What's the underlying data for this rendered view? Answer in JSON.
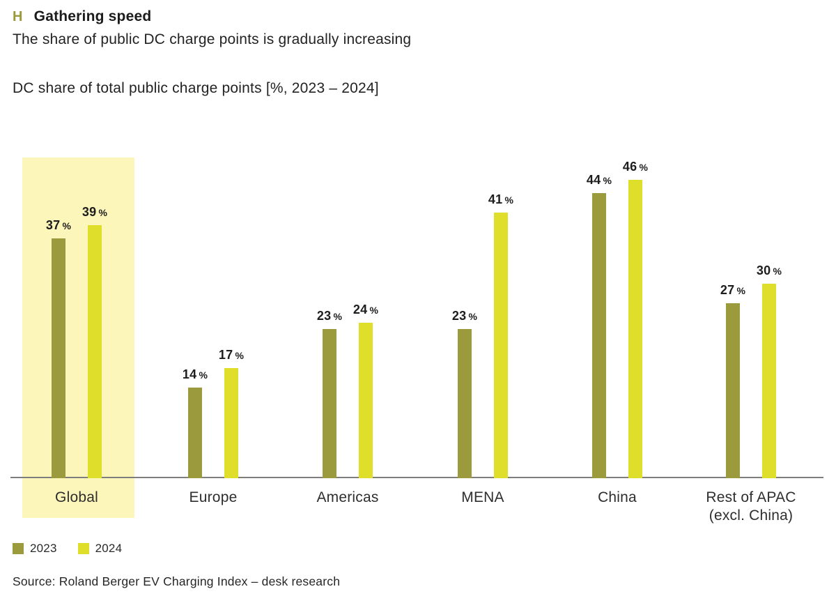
{
  "header": {
    "marker": "H",
    "title": "Gathering speed",
    "subtitle": "The share of public DC charge points is gradually increasing",
    "measure_label": "DC share of total public charge points [%, 2023 – 2024]"
  },
  "chart_data": {
    "type": "bar",
    "title": "Gathering speed",
    "subtitle": "The share of public DC charge points is gradually increasing",
    "axis_label": "DC share of total public charge points [%, 2023 – 2024]",
    "unit": "%",
    "categories": [
      "Global",
      "Europe",
      "Americas",
      "MENA",
      "China",
      "Rest of APAC\n(excl. China)"
    ],
    "series": [
      {
        "name": "2023",
        "color": "#9B9A3C",
        "values": [
          37,
          14,
          23,
          23,
          44,
          27
        ]
      },
      {
        "name": "2024",
        "color": "#DFDE2B",
        "values": [
          39,
          17,
          24,
          41,
          46,
          30
        ]
      }
    ],
    "highlighted_category": "Global",
    "highlight_color": "#FCF6BA",
    "ylim": [
      0,
      50
    ],
    "grid": false,
    "legend_position": "bottom-left",
    "baseline_color": "#7E7E7E",
    "value_label_format": "{value} %"
  },
  "source": "Source: Roland Berger EV Charging Index – desk research"
}
